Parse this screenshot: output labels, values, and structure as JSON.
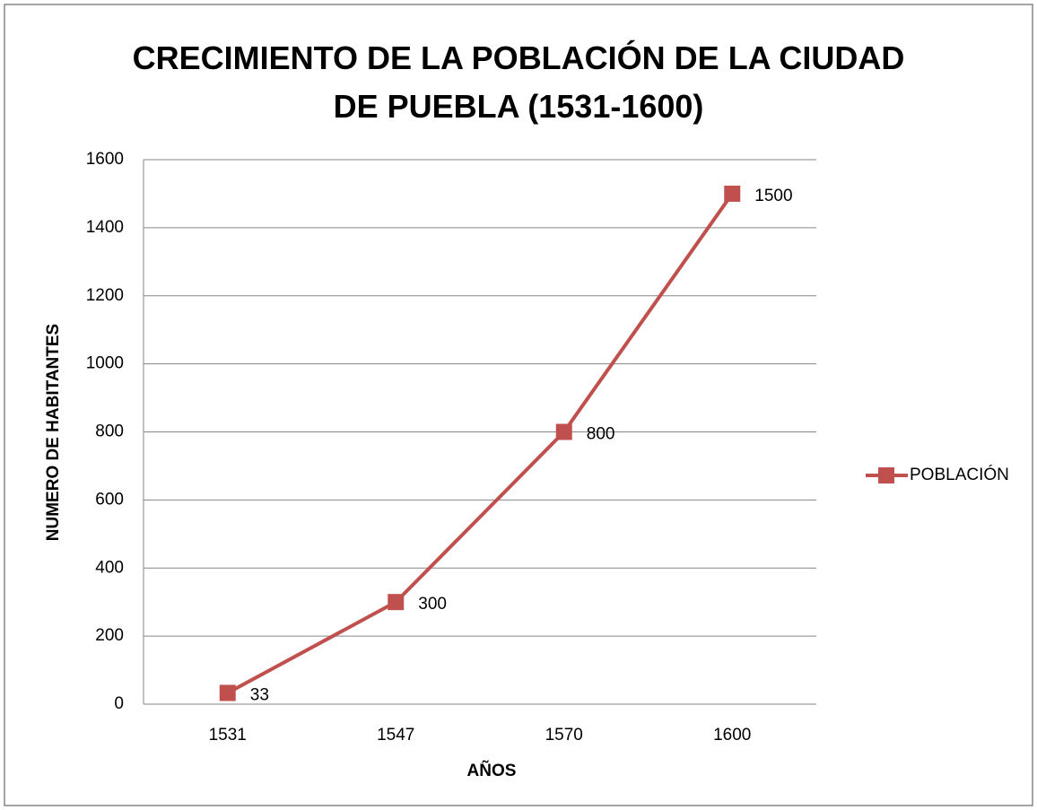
{
  "chart_data": {
    "type": "line",
    "title": "CRECIMIENTO DE LA POBLACIÓN DE LA CIUDAD DE PUEBLA (1531-1600)",
    "x_label": "AÑOS",
    "y_label": "NUMERO DE HABITANTES",
    "categories": [
      "1531",
      "1547",
      "1570",
      "1600"
    ],
    "series": [
      {
        "name": "POBLACIÓN",
        "color": "#c0504d",
        "values": [
          33,
          300,
          800,
          1500
        ]
      }
    ],
    "ylim": [
      0,
      1600
    ],
    "yticks": [
      0,
      200,
      400,
      600,
      800,
      1000,
      1200,
      1400,
      1600
    ],
    "grid": true,
    "legend": "right",
    "data_labels": true
  }
}
